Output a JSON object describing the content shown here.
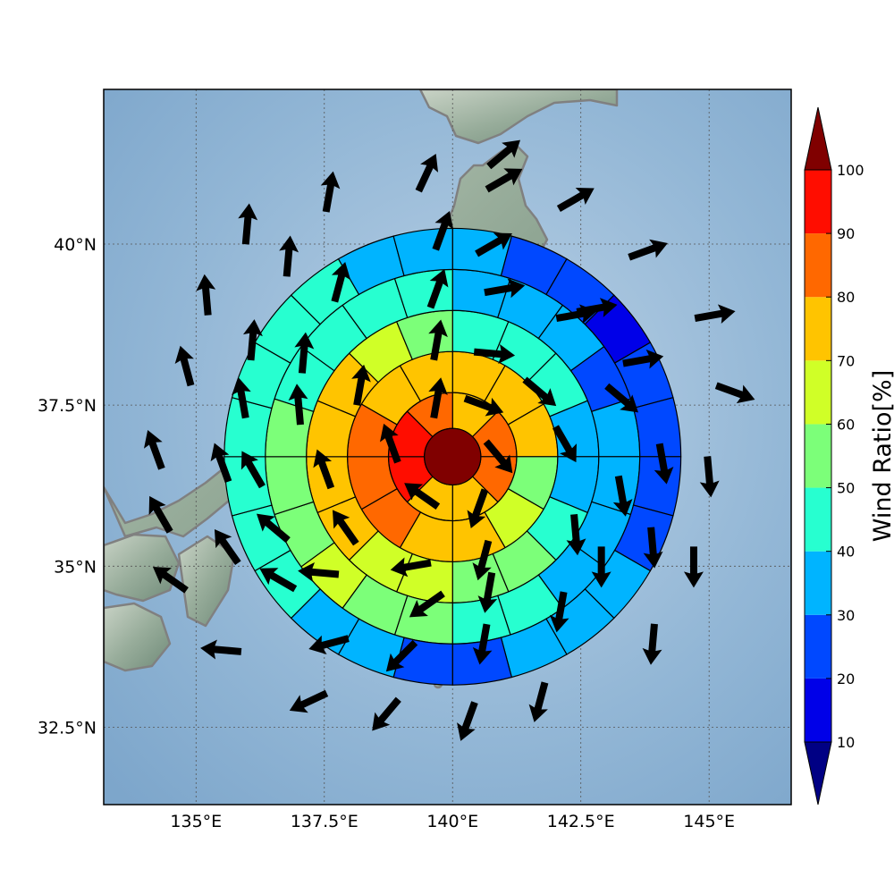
{
  "map": {
    "lon_range": [
      133.2,
      146.6
    ],
    "lat_range": [
      31.3,
      42.4
    ],
    "lon_ticks": [
      {
        "value": 135.0,
        "label": "135°E"
      },
      {
        "value": 137.5,
        "label": "137.5°E"
      },
      {
        "value": 140.0,
        "label": "140°E"
      },
      {
        "value": 142.5,
        "label": "142.5°E"
      },
      {
        "value": 145.0,
        "label": "145°E"
      }
    ],
    "lat_ticks": [
      {
        "value": 32.5,
        "label": "32.5°N"
      },
      {
        "value": 35.0,
        "label": "35°N"
      },
      {
        "value": 37.5,
        "label": "37.5°N"
      },
      {
        "value": 40.0,
        "label": "40°N"
      }
    ],
    "grid": "dotted",
    "colors": {
      "ocean": "#8fb4d6",
      "land": "#a9bdac",
      "coastline": "#808080"
    }
  },
  "chart_data": {
    "type": "heatmap",
    "variable": "Wind Ratio[%]",
    "center": {
      "lon": 140.0,
      "lat": 36.7
    },
    "rings": [
      {
        "name": "r1",
        "inner_lon": 0.55,
        "outer_lon": 1.25,
        "sectors": 8,
        "values": [
          74,
          82,
          82,
          74,
          74,
          95,
          95,
          82
        ]
      },
      {
        "name": "r2",
        "inner_lon": 1.25,
        "outer_lon": 2.05,
        "sectors": 12,
        "values": [
          74,
          74,
          74,
          57,
          64,
          74,
          74,
          82,
          82,
          82,
          74,
          74
        ]
      },
      {
        "name": "r3",
        "inner_lon": 2.05,
        "outer_lon": 2.85,
        "sectors": 16,
        "values": [
          44,
          44,
          44,
          34,
          34,
          44,
          54,
          54,
          64,
          64,
          74,
          74,
          74,
          74,
          64,
          54
        ]
      },
      {
        "name": "r4",
        "inner_lon": 2.85,
        "outer_lon": 3.65,
        "sectors": 20,
        "values": [
          34,
          34,
          34,
          24,
          34,
          34,
          34,
          34,
          44,
          44,
          54,
          54,
          64,
          54,
          54,
          54,
          44,
          44,
          44,
          44
        ]
      },
      {
        "name": "r5",
        "inner_lon": 3.65,
        "outer_lon": 4.45,
        "sectors": 24,
        "values": [
          34,
          24,
          24,
          14,
          24,
          24,
          24,
          24,
          34,
          34,
          34,
          24,
          24,
          34,
          34,
          44,
          44,
          44,
          44,
          44,
          44,
          44,
          34,
          34
        ]
      }
    ],
    "core_value": 100,
    "arrows": [
      {
        "lon": 139.7,
        "lat": 37.6,
        "dir": 10
      },
      {
        "lon": 140.6,
        "lat": 37.5,
        "dir": 110
      },
      {
        "lon": 140.9,
        "lat": 36.7,
        "dir": 140
      },
      {
        "lon": 140.5,
        "lat": 35.9,
        "dir": 200
      },
      {
        "lon": 139.4,
        "lat": 36.1,
        "dir": 305
      },
      {
        "lon": 138.8,
        "lat": 36.9,
        "dir": 340
      },
      {
        "lon": 139.7,
        "lat": 38.5,
        "dir": 10
      },
      {
        "lon": 140.8,
        "lat": 38.3,
        "dir": 95
      },
      {
        "lon": 141.7,
        "lat": 37.7,
        "dir": 130
      },
      {
        "lon": 142.2,
        "lat": 36.9,
        "dir": 150
      },
      {
        "lon": 142.4,
        "lat": 35.5,
        "dir": 175
      },
      {
        "lon": 140.6,
        "lat": 35.1,
        "dir": 195
      },
      {
        "lon": 139.2,
        "lat": 35.0,
        "dir": 260
      },
      {
        "lon": 137.9,
        "lat": 35.6,
        "dir": 325
      },
      {
        "lon": 137.5,
        "lat": 36.5,
        "dir": 340
      },
      {
        "lon": 138.2,
        "lat": 37.8,
        "dir": 10
      },
      {
        "lon": 139.7,
        "lat": 39.3,
        "dir": 20
      },
      {
        "lon": 141.0,
        "lat": 39.3,
        "dir": 80
      },
      {
        "lon": 142.4,
        "lat": 38.9,
        "dir": 80
      },
      {
        "lon": 143.3,
        "lat": 37.6,
        "dir": 130
      },
      {
        "lon": 143.3,
        "lat": 36.1,
        "dir": 170
      },
      {
        "lon": 142.9,
        "lat": 35.0,
        "dir": 180
      },
      {
        "lon": 140.7,
        "lat": 34.6,
        "dir": 190
      },
      {
        "lon": 139.5,
        "lat": 34.4,
        "dir": 235
      },
      {
        "lon": 137.4,
        "lat": 34.9,
        "dir": 275
      },
      {
        "lon": 136.5,
        "lat": 35.6,
        "dir": 310
      },
      {
        "lon": 136.1,
        "lat": 36.5,
        "dir": 330
      },
      {
        "lon": 137.0,
        "lat": 37.5,
        "dir": 355
      },
      {
        "lon": 137.1,
        "lat": 38.3,
        "dir": 5
      },
      {
        "lon": 137.8,
        "lat": 39.4,
        "dir": 15
      },
      {
        "lon": 139.8,
        "lat": 40.2,
        "dir": 20
      },
      {
        "lon": 140.8,
        "lat": 40.0,
        "dir": 60
      },
      {
        "lon": 142.8,
        "lat": 39.0,
        "dir": 80
      },
      {
        "lon": 143.7,
        "lat": 38.2,
        "dir": 80
      },
      {
        "lon": 144.1,
        "lat": 36.6,
        "dir": 170
      },
      {
        "lon": 143.9,
        "lat": 35.3,
        "dir": 175
      },
      {
        "lon": 142.1,
        "lat": 34.3,
        "dir": 190
      },
      {
        "lon": 140.6,
        "lat": 33.8,
        "dir": 190
      },
      {
        "lon": 139.0,
        "lat": 33.6,
        "dir": 225
      },
      {
        "lon": 137.6,
        "lat": 33.8,
        "dir": 255
      },
      {
        "lon": 136.6,
        "lat": 34.8,
        "dir": 300
      },
      {
        "lon": 135.6,
        "lat": 35.3,
        "dir": 325
      },
      {
        "lon": 135.5,
        "lat": 36.6,
        "dir": 340
      },
      {
        "lon": 135.9,
        "lat": 37.6,
        "dir": 350
      },
      {
        "lon": 136.1,
        "lat": 38.5,
        "dir": 5
      },
      {
        "lon": 136.8,
        "lat": 39.8,
        "dir": 5
      },
      {
        "lon": 137.6,
        "lat": 40.8,
        "dir": 10
      },
      {
        "lon": 139.5,
        "lat": 41.1,
        "dir": 25
      },
      {
        "lon": 141.0,
        "lat": 41.0,
        "dir": 60
      },
      {
        "lon": 142.4,
        "lat": 40.7,
        "dir": 60
      },
      {
        "lon": 143.8,
        "lat": 39.9,
        "dir": 70
      },
      {
        "lon": 145.1,
        "lat": 38.9,
        "dir": 80
      },
      {
        "lon": 145.5,
        "lat": 37.7,
        "dir": 110
      },
      {
        "lon": 145.0,
        "lat": 36.4,
        "dir": 175
      },
      {
        "lon": 144.7,
        "lat": 35.0,
        "dir": 180
      },
      {
        "lon": 143.9,
        "lat": 33.8,
        "dir": 185
      },
      {
        "lon": 141.7,
        "lat": 32.9,
        "dir": 195
      },
      {
        "lon": 140.3,
        "lat": 32.6,
        "dir": 200
      },
      {
        "lon": 138.7,
        "lat": 32.7,
        "dir": 220
      },
      {
        "lon": 137.2,
        "lat": 32.9,
        "dir": 245
      },
      {
        "lon": 135.5,
        "lat": 33.7,
        "dir": 275
      },
      {
        "lon": 134.5,
        "lat": 34.8,
        "dir": 305
      },
      {
        "lon": 134.3,
        "lat": 35.8,
        "dir": 330
      },
      {
        "lon": 134.2,
        "lat": 36.8,
        "dir": 340
      },
      {
        "lon": 134.8,
        "lat": 38.1,
        "dir": 345
      },
      {
        "lon": 135.2,
        "lat": 39.2,
        "dir": 355
      },
      {
        "lon": 136.0,
        "lat": 40.3,
        "dir": 5
      },
      {
        "lon": 141.0,
        "lat": 41.4,
        "dir": 50
      }
    ]
  },
  "colorbar": {
    "label": "Wind Ratio[%]",
    "ticks": [
      "10",
      "20",
      "30",
      "40",
      "50",
      "60",
      "70",
      "80",
      "90",
      "100"
    ],
    "bands": [
      {
        "from": 10,
        "to": 20,
        "color": "#0000e8"
      },
      {
        "from": 20,
        "to": 30,
        "color": "#0048ff"
      },
      {
        "from": 30,
        "to": 40,
        "color": "#00b4ff"
      },
      {
        "from": 40,
        "to": 50,
        "color": "#27ffd0"
      },
      {
        "from": 50,
        "to": 60,
        "color": "#7cff79"
      },
      {
        "from": 60,
        "to": 70,
        "color": "#d0ff27"
      },
      {
        "from": 70,
        "to": 80,
        "color": "#ffc400"
      },
      {
        "from": 80,
        "to": 90,
        "color": "#ff6800"
      },
      {
        "from": 90,
        "to": 100,
        "color": "#ff0d00"
      }
    ],
    "under_color": "#000084",
    "over_color": "#800000"
  }
}
